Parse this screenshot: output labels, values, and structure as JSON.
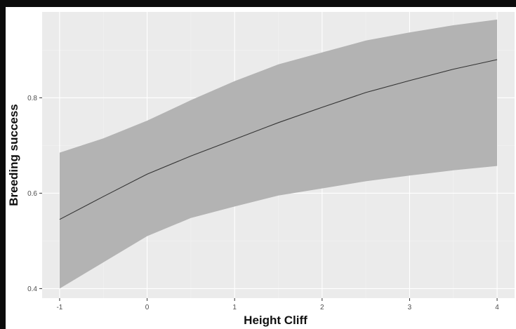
{
  "chart_data": {
    "type": "line",
    "xlabel": "Height Cliff",
    "ylabel": "Breeding success",
    "xlim": [
      -1.2,
      4.2
    ],
    "ylim": [
      0.38,
      0.98
    ],
    "x_ticks": [
      -1,
      0,
      1,
      2,
      3,
      4
    ],
    "y_ticks": [
      0.4,
      0.6,
      0.8
    ],
    "y_tick_labels": [
      "0.4",
      "0.6",
      "0.8"
    ],
    "x_tick_labels": [
      "-1",
      "0",
      "1",
      "2",
      "3",
      "4"
    ],
    "grid": true,
    "series": [
      {
        "x": [
          -1,
          -0.5,
          0,
          0.5,
          1,
          1.5,
          2,
          2.5,
          3,
          3.5,
          4
        ],
        "y": [
          0.545,
          0.593,
          0.64,
          0.678,
          0.713,
          0.748,
          0.78,
          0.811,
          0.836,
          0.86,
          0.88
        ],
        "lower": [
          0.4,
          0.455,
          0.51,
          0.548,
          0.572,
          0.595,
          0.61,
          0.625,
          0.637,
          0.648,
          0.657
        ],
        "upper": [
          0.685,
          0.715,
          0.752,
          0.795,
          0.835,
          0.87,
          0.895,
          0.92,
          0.937,
          0.952,
          0.964
        ]
      }
    ],
    "colors": {
      "panel": "#ebebeb",
      "grid_major": "#ffffff",
      "grid_minor": "#f3f3f3",
      "ribbon": "#b3b3b3",
      "line": "#333333"
    }
  }
}
